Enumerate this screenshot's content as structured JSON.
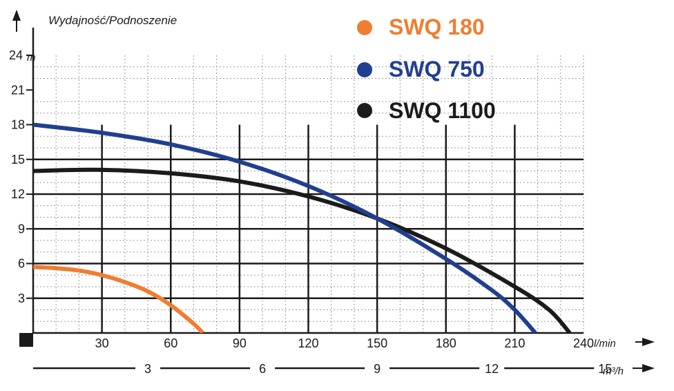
{
  "chart_data": {
    "type": "line",
    "title": "",
    "ylabel": "Wydajność/Podnoszenie",
    "y_unit": "m",
    "x_unit": "l/min",
    "x2_unit": "m³/h",
    "xlim": [
      0,
      240
    ],
    "ylim": [
      0,
      24
    ],
    "y_ticks": [
      3,
      6,
      9,
      12,
      15,
      18,
      21,
      24
    ],
    "x_ticks": [
      30,
      60,
      90,
      120,
      150,
      180,
      210,
      240
    ],
    "x2_ticks": [
      3,
      6,
      9,
      12,
      15
    ],
    "grid": true,
    "legend_position": "top-right",
    "series": [
      {
        "name": "SWQ 180",
        "color": "#ef7d32",
        "x": [
          0,
          10,
          20,
          30,
          40,
          50,
          60,
          70,
          74
        ],
        "y": [
          5.7,
          5.6,
          5.4,
          5.0,
          4.4,
          3.6,
          2.4,
          0.8,
          0.0
        ]
      },
      {
        "name": "SWQ 750",
        "color": "#213f8f",
        "x": [
          0,
          30,
          60,
          90,
          120,
          150,
          180,
          200,
          210,
          219
        ],
        "y": [
          18.0,
          17.3,
          16.3,
          14.8,
          12.7,
          9.9,
          6.4,
          3.7,
          2.0,
          0.0
        ]
      },
      {
        "name": "SWQ 1100",
        "color": "#1b1b1b",
        "x": [
          0,
          30,
          60,
          90,
          120,
          150,
          180,
          210,
          225,
          234
        ],
        "y": [
          14.0,
          14.1,
          13.8,
          13.1,
          11.8,
          9.9,
          7.3,
          4.0,
          2.0,
          0.0
        ]
      }
    ]
  }
}
